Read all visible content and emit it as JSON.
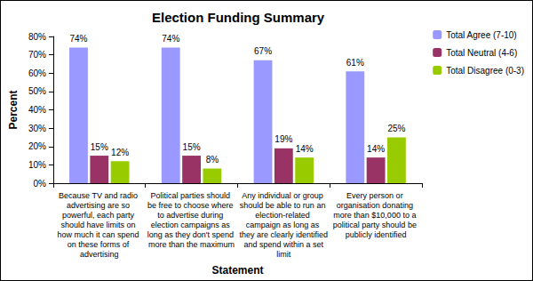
{
  "chart_data": {
    "type": "bar",
    "title": "Election Funding Summary",
    "x_label": "Statement",
    "y_label": "Percent",
    "categories": [
      "Because TV and radio advertising are so powerful, each party should have limits on how much it can spend on these forms of advertising",
      "Political parties should be free to choose where to advertise during election campaigns as long as they don't spend more than the maximum",
      "Any individual or group should be able to run an election-related campaign as long as they are clearly identified and spend within a set limit",
      "Every person or organisation donating more than $10,000 to a political party should be publicly identified"
    ],
    "series": [
      {
        "name": "Total Agree (7-10)",
        "color": "#9999FF",
        "values": [
          74,
          74,
          67,
          61
        ],
        "value_labels": [
          "74%",
          "74%",
          "67%",
          "61%"
        ]
      },
      {
        "name": "Total Neutral (4-6)",
        "color": "#993366",
        "values": [
          15,
          15,
          19,
          14
        ],
        "value_labels": [
          "15%",
          "15%",
          "19%",
          "14%"
        ]
      },
      {
        "name": "Total Disagree (0-3)",
        "color": "#99CC00",
        "values": [
          12,
          8,
          14,
          25
        ],
        "value_labels": [
          "12%",
          "8%",
          "14%",
          "25%"
        ]
      }
    ],
    "ylim": [
      0,
      80
    ],
    "yticks": [
      {
        "value": 0,
        "label": "0%"
      },
      {
        "value": 10,
        "label": "10%"
      },
      {
        "value": 20,
        "label": "20%"
      },
      {
        "value": 30,
        "label": "30%"
      },
      {
        "value": 40,
        "label": "40%"
      },
      {
        "value": 50,
        "label": "50%"
      },
      {
        "value": 60,
        "label": "60%"
      },
      {
        "value": 70,
        "label": "70%"
      },
      {
        "value": 80,
        "label": "80%"
      }
    ],
    "grid": false,
    "legend": "right",
    "data_labels": true
  }
}
